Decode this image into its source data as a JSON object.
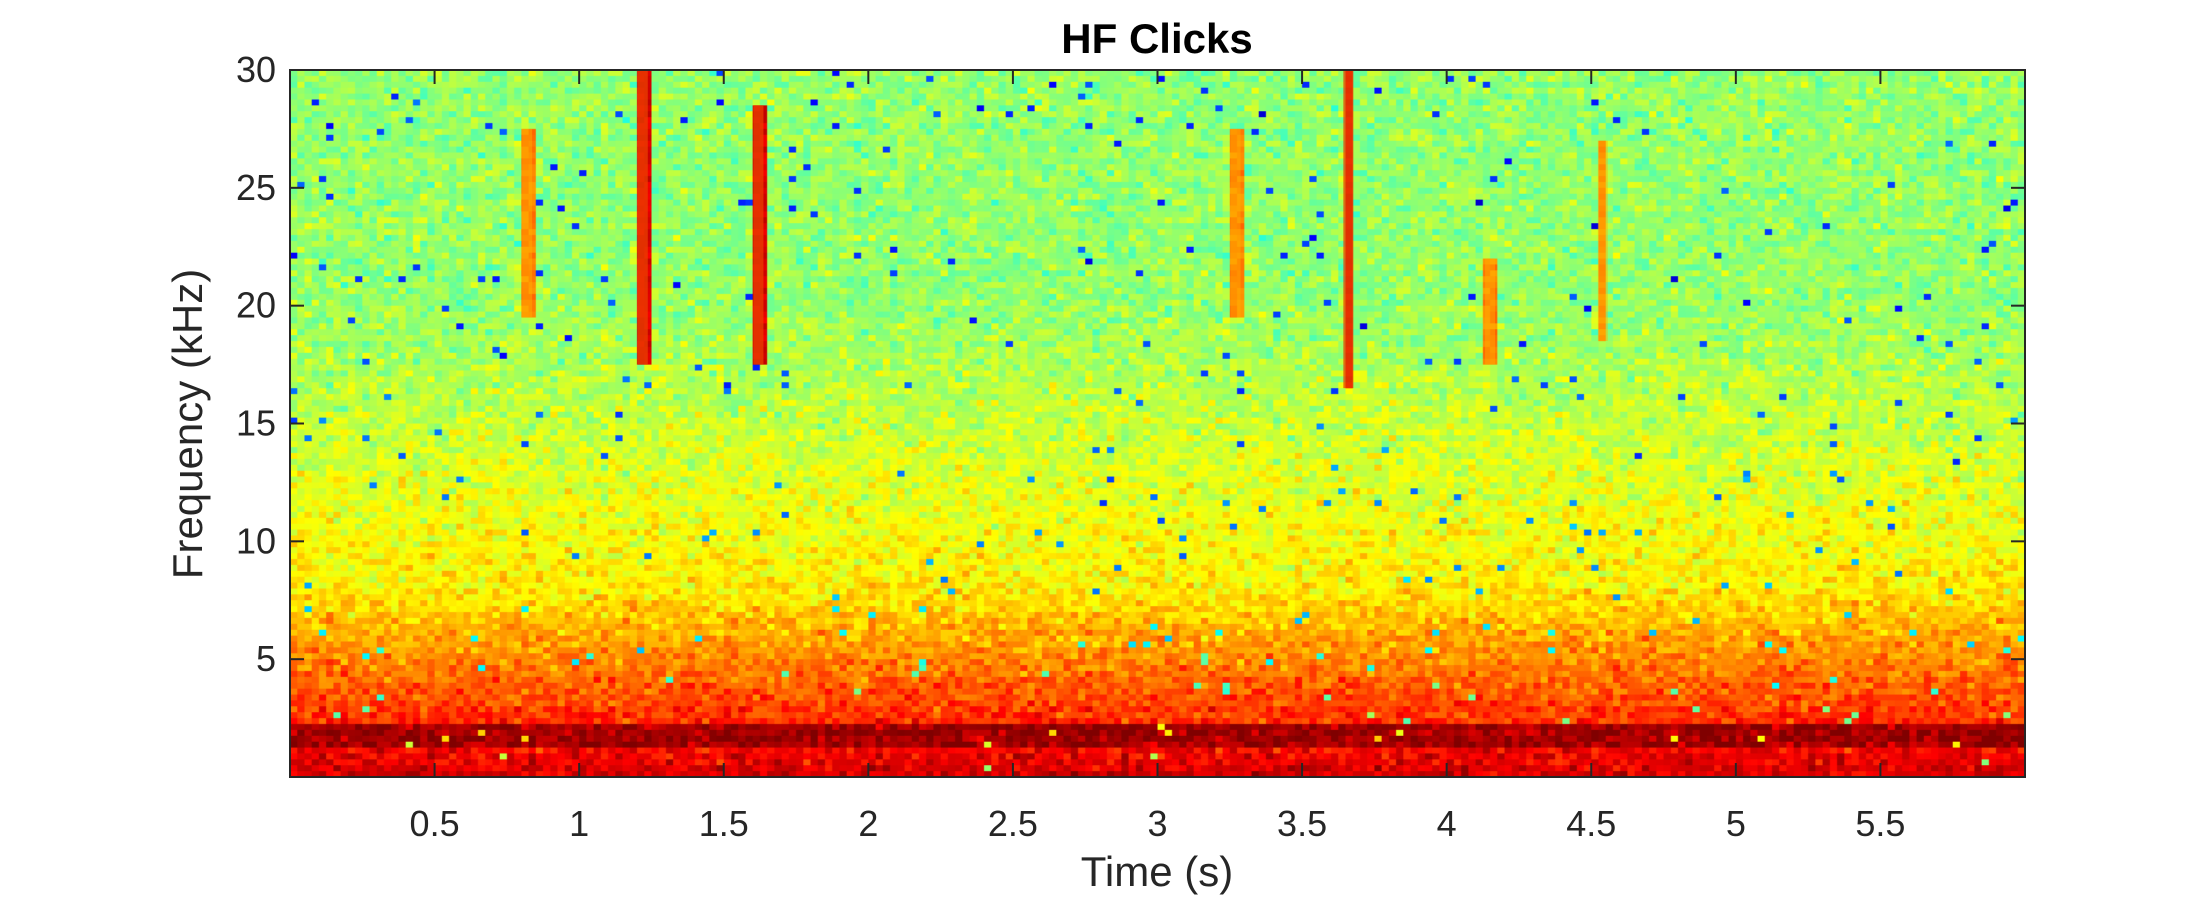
{
  "chart_data": {
    "type": "heatmap",
    "title": "HF Clicks",
    "xlabel": "Time (s)",
    "ylabel": "Frequency (kHz)",
    "xlim": [
      0,
      6
    ],
    "ylim": [
      0,
      30
    ],
    "xticks": [
      0.5,
      1,
      1.5,
      2,
      2.5,
      3,
      3.5,
      4,
      4.5,
      5,
      5.5
    ],
    "xtick_labels": [
      "0.5",
      "1",
      "1.5",
      "2",
      "2.5",
      "3",
      "3.5",
      "4",
      "4.5",
      "5",
      "5.5"
    ],
    "yticks": [
      5,
      10,
      15,
      20,
      25,
      30
    ],
    "ytick_labels": [
      "5",
      "10",
      "15",
      "20",
      "25",
      "30"
    ],
    "colormap": "jet",
    "colors": {
      "background_noise": "#bfff40",
      "low_frequency_band": "#ff2000",
      "click": "#e84000",
      "axis": "#262626"
    },
    "low_frequency_band_khz": [
      0,
      8
    ],
    "low_frequency_peak_khz": 1.7,
    "clicks": [
      {
        "time": 0.82,
        "freq_min": 19.5,
        "freq_max": 27.5,
        "strength": "weak"
      },
      {
        "time": 1.22,
        "freq_min": 17.5,
        "freq_max": 30,
        "strength": "strong"
      },
      {
        "time": 1.62,
        "freq_min": 17.5,
        "freq_max": 28.5,
        "strength": "strong"
      },
      {
        "time": 3.27,
        "freq_min": 19.5,
        "freq_max": 27.5,
        "strength": "weak"
      },
      {
        "time": 3.66,
        "freq_min": 16.5,
        "freq_max": 30,
        "strength": "strong"
      },
      {
        "time": 4.15,
        "freq_min": 17.5,
        "freq_max": 22,
        "strength": "weak"
      },
      {
        "time": 4.54,
        "freq_min": 18.5,
        "freq_max": 27,
        "strength": "weak"
      }
    ],
    "grid": false,
    "legend": "none"
  }
}
